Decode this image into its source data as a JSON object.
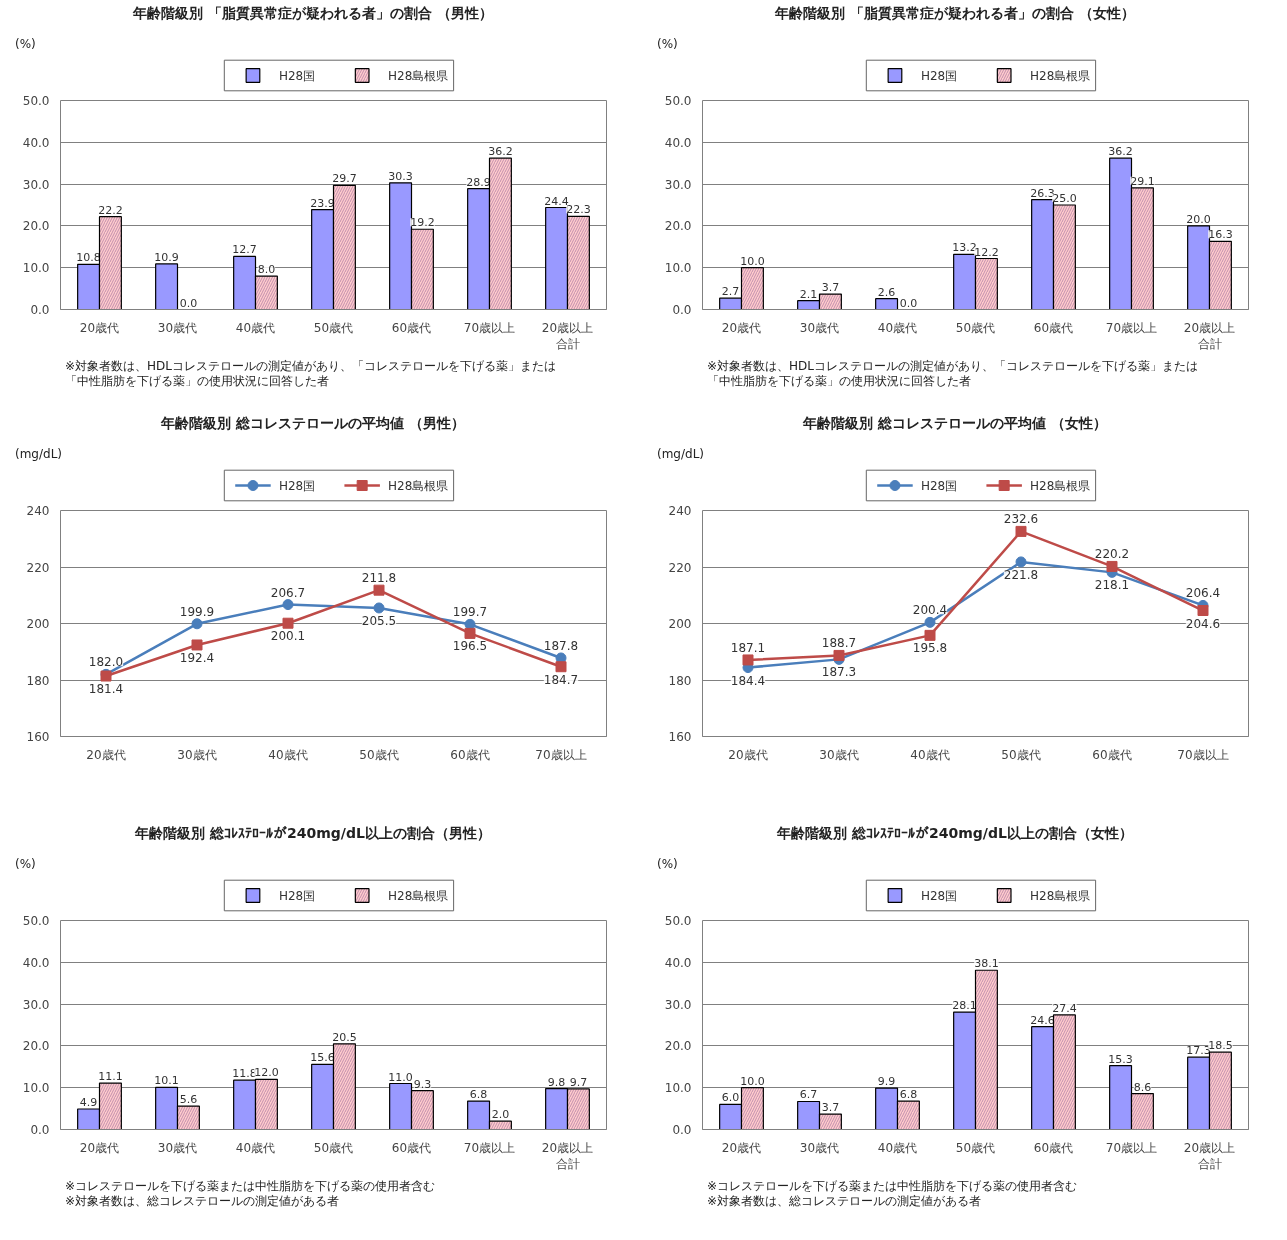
{
  "chart_data": [
    {
      "type": "bar",
      "title": "年齢階級別 「脂質異常症が疑われる者」の割合 （男性）",
      "ylabel": "(%)",
      "categories": [
        "20歳代",
        "30歳代",
        "40歳代",
        "50歳代",
        "60歳代",
        "70歳以上",
        "20歳以上合計"
      ],
      "series": [
        {
          "name": "H28国",
          "color": "#9999ff",
          "values": [
            10.8,
            10.9,
            12.7,
            23.9,
            30.3,
            28.9,
            24.4
          ],
          "value_labels": [
            "10.8",
            "10.9",
            "12.7",
            "23.9",
            "30.3",
            "28.9",
            "24.4"
          ]
        },
        {
          "name": "H28島根県",
          "color": "#ffcccc",
          "values": [
            22.2,
            0.0,
            8.0,
            29.7,
            19.2,
            36.2,
            22.3
          ],
          "value_labels": [
            "22.2",
            "0.0",
            "8.0",
            "29.7",
            "19.2",
            "36.2",
            "22.3"
          ]
        }
      ],
      "ylim": [
        0,
        50
      ],
      "yticks": [
        {
          "value": 0,
          "label": "0.0"
        },
        {
          "value": 10,
          "label": "10.0"
        },
        {
          "value": 20,
          "label": "20.0"
        },
        {
          "value": 30,
          "label": "30.0"
        },
        {
          "value": 40,
          "label": "40.0"
        },
        {
          "value": 50,
          "label": "50.0"
        }
      ],
      "grid": "y",
      "legend": "top",
      "annotations": [
        "※対象者数は、HDLコレステロールの測定値があり、「コレステロールを下げる薬」または「中性脂肪を下げる薬」の使用状況に回答した者"
      ]
    },
    {
      "type": "bar",
      "title": "年齢階級別 「脂質異常症が疑われる者」の割合 （女性）",
      "ylabel": "(%)",
      "categories": [
        "20歳代",
        "30歳代",
        "40歳代",
        "50歳代",
        "60歳代",
        "70歳以上",
        "20歳以上合計"
      ],
      "series": [
        {
          "name": "H28国",
          "color": "#9999ff",
          "values": [
            2.7,
            2.1,
            2.6,
            13.2,
            26.3,
            36.2,
            20.0
          ],
          "value_labels": [
            "2.7",
            "2.1",
            "2.6",
            "13.2",
            "26.3",
            "36.2",
            "20.0"
          ]
        },
        {
          "name": "H28島根県",
          "color": "#ffcccc",
          "values": [
            10.0,
            3.7,
            0.0,
            12.2,
            25.0,
            29.1,
            16.3
          ],
          "value_labels": [
            "10.0",
            "3.7",
            "0.0",
            "12.2",
            "25.0",
            "29.1",
            "16.3"
          ]
        }
      ],
      "ylim": [
        0,
        50
      ],
      "yticks": [
        {
          "value": 0,
          "label": "0.0"
        },
        {
          "value": 10,
          "label": "10.0"
        },
        {
          "value": 20,
          "label": "20.0"
        },
        {
          "value": 30,
          "label": "30.0"
        },
        {
          "value": 40,
          "label": "40.0"
        },
        {
          "value": 50,
          "label": "50.0"
        }
      ],
      "grid": "y",
      "legend": "top",
      "annotations": [
        "※対象者数は、HDLコレステロールの測定値があり、「コレステロールを下げる薬」または「中性脂肪を下げる薬」の使用状況に回答した者"
      ]
    },
    {
      "type": "line",
      "title": "年齢階級別 総コレステロールの平均値 （男性）",
      "ylabel": "(mg/dL)",
      "categories": [
        "20歳代",
        "30歳代",
        "40歳代",
        "50歳代",
        "60歳代",
        "70歳以上"
      ],
      "series": [
        {
          "name": "H28国",
          "color": "#4a7ebb",
          "marker": "circle",
          "values": [
            182.0,
            199.9,
            206.7,
            205.5,
            199.7,
            187.8
          ],
          "value_labels": [
            "182.0",
            "199.9",
            "206.7",
            "205.5",
            "199.7",
            "187.8"
          ]
        },
        {
          "name": "H28島根県",
          "color": "#be4b48",
          "marker": "square",
          "values": [
            181.4,
            192.4,
            200.1,
            211.8,
            196.5,
            184.7
          ],
          "value_labels": [
            "181.4",
            "192.4",
            "200.1",
            "211.8",
            "196.5",
            "184.7"
          ]
        }
      ],
      "ylim": [
        160,
        240
      ],
      "yticks": [
        160,
        180,
        200,
        220,
        240
      ],
      "grid": "y",
      "legend": "top"
    },
    {
      "type": "line",
      "title": "年齢階級別 総コレステロールの平均値 （女性）",
      "ylabel": "(mg/dL)",
      "categories": [
        "20歳代",
        "30歳代",
        "40歳代",
        "50歳代",
        "60歳代",
        "70歳以上"
      ],
      "series": [
        {
          "name": "H28国",
          "color": "#4a7ebb",
          "marker": "circle",
          "values": [
            184.4,
            187.3,
            200.4,
            221.8,
            218.1,
            206.4
          ],
          "value_labels": [
            "184.4",
            "187.3",
            "200.4",
            "221.8",
            "218.1",
            "206.4"
          ]
        },
        {
          "name": "H28島根県",
          "color": "#be4b48",
          "marker": "square",
          "values": [
            187.1,
            188.7,
            195.8,
            232.6,
            220.2,
            204.6
          ],
          "value_labels": [
            "187.1",
            "188.7",
            "195.8",
            "232.6",
            "220.2",
            "204.6"
          ]
        }
      ],
      "ylim": [
        160,
        240
      ],
      "yticks": [
        160,
        180,
        200,
        220,
        240
      ],
      "grid": "y",
      "legend": "top"
    },
    {
      "type": "bar",
      "title": "年齢階級別 総ｺﾚｽﾃﾛｰﾙが240mg/dL以上の割合（男性）",
      "ylabel": "(%)",
      "categories": [
        "20歳代",
        "30歳代",
        "40歳代",
        "50歳代",
        "60歳代",
        "70歳以上",
        "20歳以上合計"
      ],
      "series": [
        {
          "name": "H28国",
          "color": "#9999ff",
          "values": [
            4.9,
            10.1,
            11.8,
            15.6,
            11.0,
            6.8,
            9.8
          ],
          "value_labels": [
            "4.9",
            "10.1",
            "11.8",
            "15.6",
            "11.0",
            "6.8",
            "9.8"
          ]
        },
        {
          "name": "H28島根県",
          "color": "#ffcccc",
          "values": [
            11.1,
            5.6,
            12.0,
            20.5,
            9.3,
            2.0,
            9.7
          ],
          "value_labels": [
            "11.1",
            "5.6",
            "12.0",
            "20.5",
            "9.3",
            "2.0",
            "9.7"
          ]
        }
      ],
      "ylim": [
        0,
        50
      ],
      "yticks": [
        {
          "value": 0,
          "label": "0.0"
        },
        {
          "value": 10,
          "label": "10.0"
        },
        {
          "value": 20,
          "label": "20.0"
        },
        {
          "value": 30,
          "label": "30.0"
        },
        {
          "value": 40,
          "label": "40.0"
        },
        {
          "value": 50,
          "label": "50.0"
        }
      ],
      "grid": "y",
      "legend": "top",
      "annotations": [
        "※コレステロールを下げる薬または中性脂肪を下げる薬の使用者含む",
        "※対象者数は、総コレステロールの測定値がある者"
      ]
    },
    {
      "type": "bar",
      "title": "年齢階級別 総ｺﾚｽﾃﾛｰﾙが240mg/dL以上の割合（女性）",
      "ylabel": "(%)",
      "categories": [
        "20歳代",
        "30歳代",
        "40歳代",
        "50歳代",
        "60歳代",
        "70歳以上",
        "20歳以上合計"
      ],
      "series": [
        {
          "name": "H28国",
          "color": "#9999ff",
          "values": [
            6.0,
            6.7,
            9.9,
            28.1,
            24.6,
            15.3,
            17.3
          ],
          "value_labels": [
            "6.0",
            "6.7",
            "9.9",
            "28.1",
            "24.6",
            "15.3",
            "17.3"
          ]
        },
        {
          "name": "H28島根県",
          "color": "#ffcccc",
          "values": [
            10.0,
            3.7,
            6.8,
            38.1,
            27.4,
            8.6,
            18.5
          ],
          "value_labels": [
            "10.0",
            "3.7",
            "6.8",
            "38.1",
            "27.4",
            "8.6",
            "18.5"
          ]
        }
      ],
      "ylim": [
        0,
        50
      ],
      "yticks": [
        {
          "value": 0,
          "label": "0.0"
        },
        {
          "value": 10,
          "label": "10.0"
        },
        {
          "value": 20,
          "label": "20.0"
        },
        {
          "value": 30,
          "label": "30.0"
        },
        {
          "value": 40,
          "label": "40.0"
        },
        {
          "value": 50,
          "label": "50.0"
        }
      ],
      "grid": "y",
      "legend": "top",
      "annotations": [
        "※コレステロールを下げる薬または中性脂肪を下げる薬の使用者含む",
        "※対象者数は、総コレステロールの測定値がある者"
      ]
    }
  ]
}
